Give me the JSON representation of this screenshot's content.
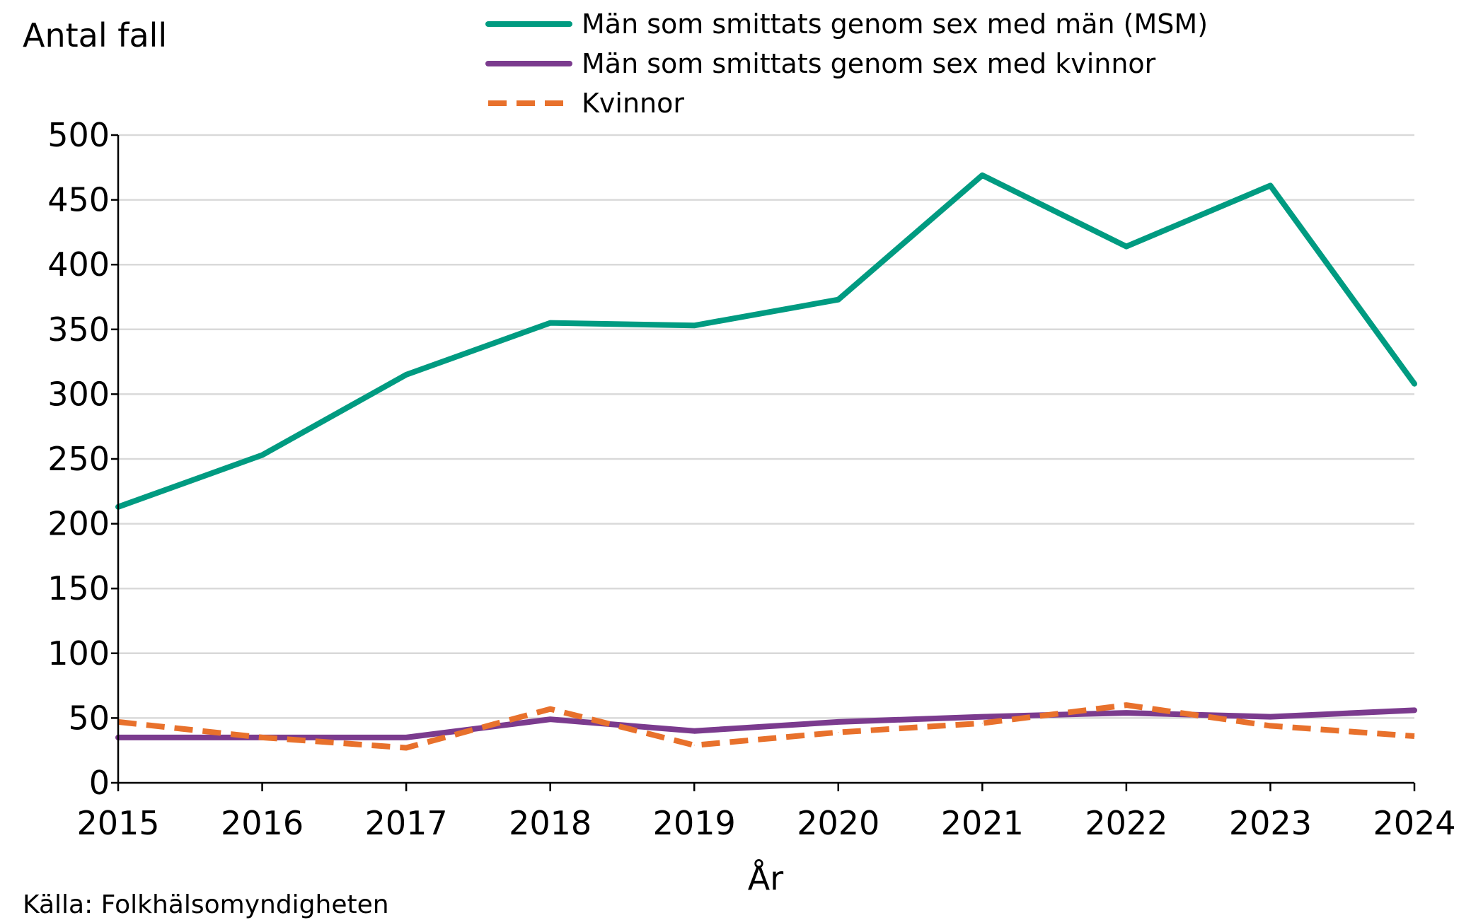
{
  "chart_data": {
    "type": "line",
    "ylabel": "Antal fall",
    "xlabel": "År",
    "source": "Källa: Folkhälsomyndigheten",
    "ylim": [
      0,
      500
    ],
    "yticks": [
      0,
      50,
      100,
      150,
      200,
      250,
      300,
      350,
      400,
      450,
      500
    ],
    "grid": true,
    "legend_position": "top-center",
    "categories": [
      "2015",
      "2016",
      "2017",
      "2018",
      "2019",
      "2020",
      "2021",
      "2022",
      "2023",
      "2024"
    ],
    "series": [
      {
        "name": "Män som smittats genom sex med män (MSM)",
        "color": "#009B81",
        "dashed": false,
        "values": [
          213,
          253,
          315,
          355,
          353,
          373,
          469,
          414,
          461,
          308
        ]
      },
      {
        "name": "Män som smittats genom sex med kvinnor",
        "color": "#7B3B8E",
        "dashed": false,
        "values": [
          35,
          35,
          35,
          49,
          40,
          47,
          51,
          54,
          51,
          56
        ]
      },
      {
        "name": "Kvinnor",
        "color": "#E8712C",
        "dashed": true,
        "values": [
          47,
          35,
          27,
          57,
          29,
          39,
          46,
          60,
          44,
          36
        ]
      }
    ]
  }
}
